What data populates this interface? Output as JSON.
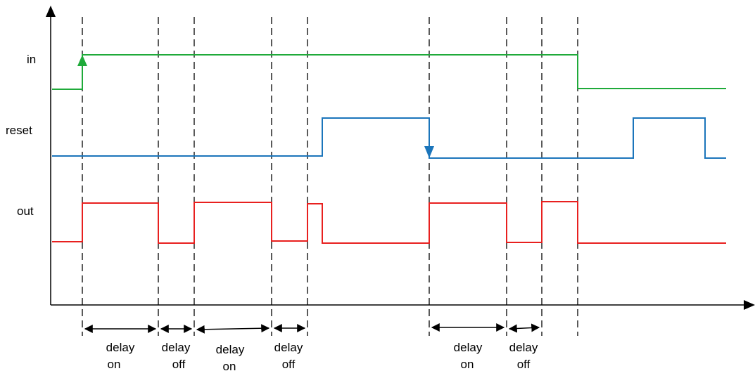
{
  "title": "",
  "signals": [
    {
      "key": "in",
      "label": "in",
      "color": "#1faa3a"
    },
    {
      "key": "reset",
      "label": "reset",
      "color": "#1b75bb"
    },
    {
      "key": "out",
      "label": "out",
      "color": "#e8201f"
    }
  ],
  "intervals": [
    {
      "line1": "delay",
      "line2": "on"
    },
    {
      "line1": "delay",
      "line2": "off"
    },
    {
      "line1": "delay",
      "line2": "on"
    },
    {
      "line1": "delay",
      "line2": "off"
    },
    {
      "line1": "delay",
      "line2": "on"
    },
    {
      "line1": "delay",
      "line2": "off"
    }
  ],
  "colors": {
    "axis": "#000000",
    "guide": "#000000",
    "background": "#ffffff"
  }
}
